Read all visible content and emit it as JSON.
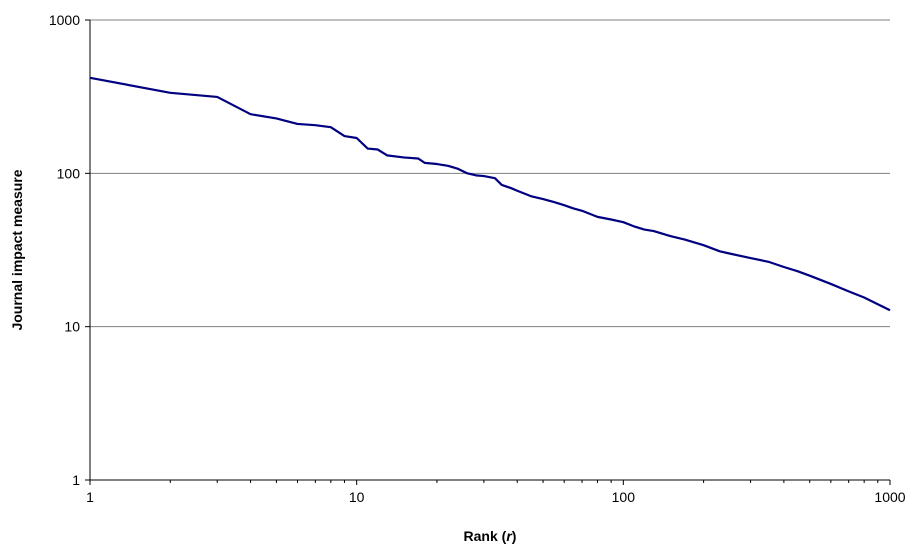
{
  "chart_data": {
    "type": "line",
    "title": "",
    "xlabel_main": "Rank (",
    "xlabel_var": "r",
    "xlabel_close": ")",
    "ylabel": "Journal impact measure",
    "xscale": "log",
    "yscale": "log",
    "xlim": [
      1,
      1000
    ],
    "ylim": [
      1,
      1000
    ],
    "x_ticks": [
      "1",
      "10",
      "100",
      "1000"
    ],
    "y_ticks": [
      "1",
      "10",
      "100",
      "1000"
    ],
    "grid": "horizontal major",
    "legend": "none",
    "line_color": "#000080",
    "series": [
      {
        "x": [
          1,
          2,
          3,
          4,
          5,
          6,
          7,
          8,
          9,
          10,
          11,
          12,
          13,
          15,
          17,
          18,
          20,
          22,
          24,
          26,
          28,
          30,
          33,
          35,
          38,
          40,
          45,
          50,
          55,
          60,
          65,
          70,
          80,
          90,
          100,
          110,
          120,
          130,
          150,
          170,
          200,
          230,
          250,
          300,
          350,
          400,
          450,
          500,
          600,
          700,
          800,
          900,
          1000
        ],
        "y": [
          420,
          335,
          315,
          243,
          228,
          210,
          206,
          200,
          175,
          170,
          145,
          143,
          131,
          127,
          125,
          117,
          115,
          112,
          107,
          100,
          97,
          96,
          93,
          84,
          80,
          77,
          71,
          68,
          65,
          62,
          59,
          57,
          52,
          50,
          48,
          45,
          43,
          42,
          39,
          37,
          34,
          31,
          30,
          28,
          26.5,
          24.5,
          23,
          21.5,
          19,
          17,
          15.5,
          14,
          12.8
        ]
      }
    ]
  }
}
